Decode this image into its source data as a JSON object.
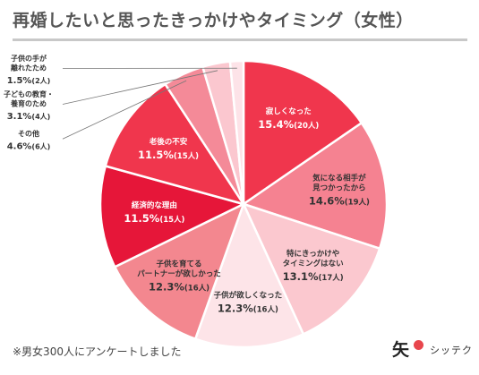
{
  "title": "再婚したいと思ったきっかけやタイミング（女性）",
  "footnote": "※男女300人にアンケートしました",
  "logo": {
    "mark": "矢",
    "text": "シッテク"
  },
  "chart_data": {
    "type": "pie",
    "title": "再婚したいと思ったきっかけやタイミング（女性）",
    "slices": [
      {
        "label": [
          "寂しくなった"
        ],
        "value": 15.4,
        "text": "15.4%",
        "count": "(20人)",
        "color": "#f0364d"
      },
      {
        "label": [
          "気になる相手が",
          "見つかったから"
        ],
        "value": 14.6,
        "text": "14.6%",
        "count": "(19人)",
        "color": "#f58291"
      },
      {
        "label": [
          "特にきっかけや",
          "タイミングはない"
        ],
        "value": 13.1,
        "text": "13.1%",
        "count": "(17人)",
        "color": "#fbc8cf"
      },
      {
        "label": [
          "子供が欲しくなった"
        ],
        "value": 12.3,
        "text": "12.3%",
        "count": "(16人)",
        "color": "#fde4e8"
      },
      {
        "label": [
          "子供を育てる",
          "パートナーが欲しかった"
        ],
        "value": 12.3,
        "text": "12.3%",
        "count": "(16人)",
        "color": "#f3878f"
      },
      {
        "label": [
          "経済的な理由"
        ],
        "value": 11.5,
        "text": "11.5%",
        "count": "(15人)",
        "color": "#e61639"
      },
      {
        "label": [
          "老後の不安"
        ],
        "value": 11.5,
        "text": "11.5%",
        "count": "(15人)",
        "color": "#f0364d"
      },
      {
        "label": [
          "その他"
        ],
        "value": 4.6,
        "text": "4.6%",
        "count": "(6人)",
        "color": "#f48a98"
      },
      {
        "label": [
          "子どもの教育・",
          "養育のため"
        ],
        "value": 3.1,
        "text": "3.1%",
        "count": "(4人)",
        "color": "#fbc7cf"
      },
      {
        "label": [
          "子供の手が",
          "離れたため"
        ],
        "value": 1.5,
        "text": "1.5%",
        "count": "(2人)",
        "color": "#fde3e8"
      }
    ]
  }
}
